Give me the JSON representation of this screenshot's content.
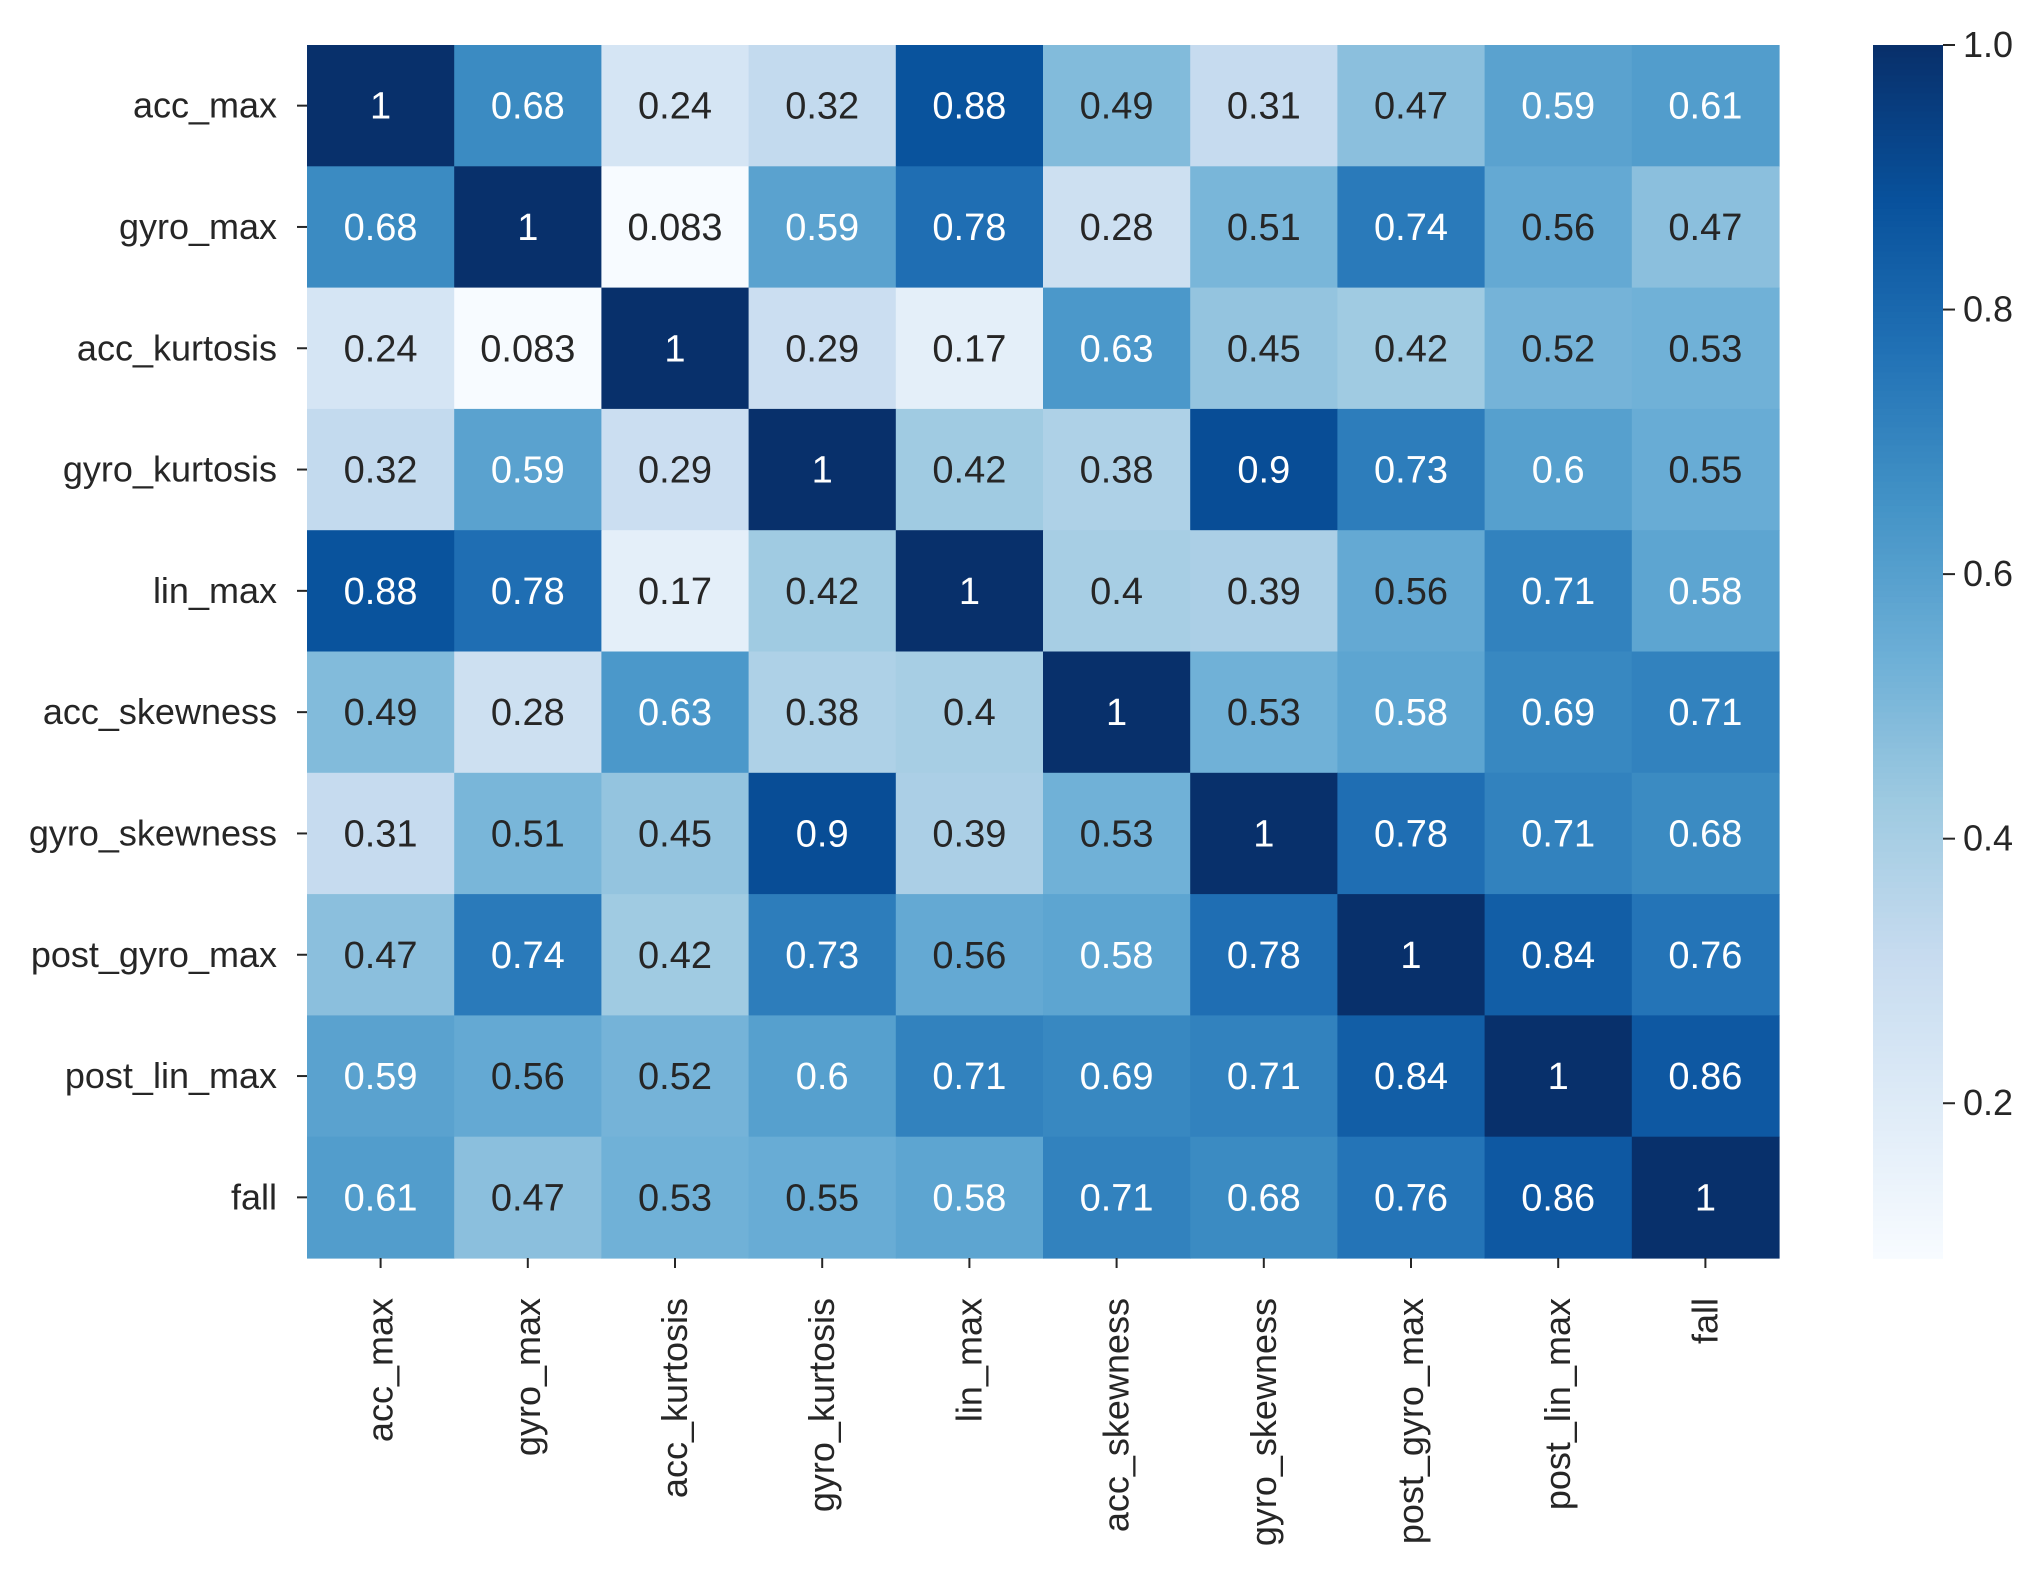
{
  "chart_data": {
    "type": "heatmap",
    "title": "",
    "xlabel": "",
    "ylabel": "",
    "labels": [
      "acc_max",
      "gyro_max",
      "acc_kurtosis",
      "gyro_kurtosis",
      "lin_max",
      "acc_skewness",
      "gyro_skewness",
      "post_gyro_max",
      "post_lin_max",
      "fall"
    ],
    "matrix": [
      [
        1,
        0.68,
        0.24,
        0.32,
        0.88,
        0.49,
        0.31,
        0.47,
        0.59,
        0.61
      ],
      [
        0.68,
        1,
        0.083,
        0.59,
        0.78,
        0.28,
        0.51,
        0.74,
        0.56,
        0.47
      ],
      [
        0.24,
        0.083,
        1,
        0.29,
        0.17,
        0.63,
        0.45,
        0.42,
        0.52,
        0.53
      ],
      [
        0.32,
        0.59,
        0.29,
        1,
        0.42,
        0.38,
        0.9,
        0.73,
        0.6,
        0.55
      ],
      [
        0.88,
        0.78,
        0.17,
        0.42,
        1,
        0.4,
        0.39,
        0.56,
        0.71,
        0.58
      ],
      [
        0.49,
        0.28,
        0.63,
        0.38,
        0.4,
        1,
        0.53,
        0.58,
        0.69,
        0.71
      ],
      [
        0.31,
        0.51,
        0.45,
        0.9,
        0.39,
        0.53,
        1,
        0.78,
        0.71,
        0.68
      ],
      [
        0.47,
        0.74,
        0.42,
        0.73,
        0.56,
        0.58,
        0.78,
        1,
        0.84,
        0.76
      ],
      [
        0.59,
        0.56,
        0.52,
        0.6,
        0.71,
        0.69,
        0.71,
        0.84,
        1,
        0.86
      ],
      [
        0.61,
        0.47,
        0.53,
        0.55,
        0.58,
        0.71,
        0.68,
        0.76,
        0.86,
        1
      ]
    ],
    "colorbar": {
      "min": 0.083,
      "max": 1.0,
      "ticks": [
        0.2,
        0.4,
        0.6,
        0.8,
        1.0
      ],
      "tick_labels": [
        "0.2",
        "0.4",
        "0.6",
        "0.8",
        "1.0"
      ],
      "colormap": "Blues"
    },
    "colors": {
      "dark_text": "#262626",
      "light_text": "#ffffff",
      "scale": [
        "#f7fbff",
        "#deebf7",
        "#c6dbef",
        "#9ecae1",
        "#6baed6",
        "#4292c6",
        "#2171b5",
        "#08519c",
        "#08306b"
      ]
    }
  }
}
